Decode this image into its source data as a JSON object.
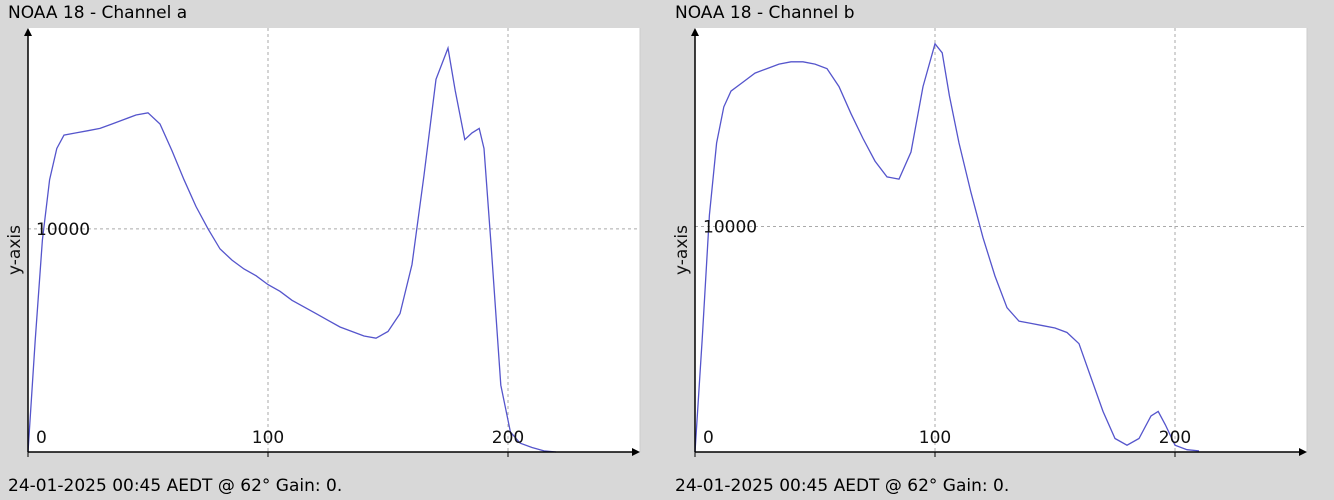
{
  "charts": [
    {
      "title": "NOAA 18 - Channel a",
      "footer": "24-01-2025 00:45 AEDT @ 62° Gain: 0.",
      "ylabel": "y-axis",
      "chart_data_ref": 0
    },
    {
      "title": "NOAA 18 - Channel b",
      "footer": "24-01-2025 00:45 AEDT @ 62° Gain: 0.",
      "ylabel": "y-axis",
      "chart_data_ref": 1
    }
  ],
  "chart_data": [
    {
      "type": "line",
      "title": "NOAA 18 - Channel a",
      "xlabel": "",
      "ylabel": "y-axis",
      "xlim": [
        0,
        255
      ],
      "ylim": [
        0,
        19000
      ],
      "xticks": [
        0,
        100,
        200
      ],
      "yticks": [
        10000
      ],
      "grid": true,
      "line_color": "#5555cc",
      "x": [
        0,
        3,
        6,
        9,
        12,
        15,
        20,
        25,
        30,
        35,
        40,
        45,
        50,
        55,
        60,
        65,
        70,
        75,
        80,
        85,
        90,
        95,
        100,
        105,
        110,
        115,
        120,
        125,
        130,
        135,
        140,
        145,
        150,
        155,
        160,
        165,
        170,
        175,
        178,
        182,
        185,
        188,
        190,
        193,
        197,
        201,
        205,
        210,
        215,
        220
      ],
      "y": [
        0,
        5000,
        9500,
        12200,
        13600,
        14200,
        14300,
        14400,
        14500,
        14700,
        14900,
        15100,
        15200,
        14700,
        13500,
        12200,
        11000,
        10000,
        9100,
        8600,
        8200,
        7900,
        7500,
        7200,
        6800,
        6500,
        6200,
        5900,
        5600,
        5400,
        5200,
        5100,
        5400,
        6200,
        8400,
        12400,
        16700,
        18100,
        16200,
        14000,
        14300,
        14500,
        13600,
        9200,
        3000,
        900,
        400,
        200,
        50,
        0
      ]
    },
    {
      "type": "line",
      "title": "NOAA 18 - Channel b",
      "xlabel": "",
      "ylabel": "y-axis",
      "xlim": [
        0,
        255
      ],
      "ylim": [
        0,
        18800
      ],
      "xticks": [
        0,
        100,
        200
      ],
      "yticks": [
        10000
      ],
      "grid": true,
      "line_color": "#5555cc",
      "x": [
        0,
        3,
        6,
        9,
        12,
        15,
        20,
        25,
        30,
        35,
        40,
        45,
        50,
        55,
        60,
        65,
        70,
        75,
        80,
        85,
        90,
        95,
        100,
        103,
        106,
        110,
        115,
        120,
        125,
        130,
        135,
        140,
        145,
        150,
        155,
        160,
        165,
        170,
        175,
        180,
        185,
        190,
        193,
        196,
        200,
        205,
        210
      ],
      "y": [
        0,
        5000,
        10500,
        13700,
        15300,
        16000,
        16400,
        16800,
        17000,
        17200,
        17300,
        17300,
        17200,
        17000,
        16200,
        15000,
        13900,
        12900,
        12200,
        12100,
        13300,
        16200,
        18100,
        17700,
        15800,
        13700,
        11500,
        9500,
        7800,
        6400,
        5800,
        5700,
        5600,
        5500,
        5300,
        4800,
        3300,
        1800,
        600,
        300,
        600,
        1600,
        1800,
        1200,
        300,
        100,
        50
      ]
    }
  ]
}
